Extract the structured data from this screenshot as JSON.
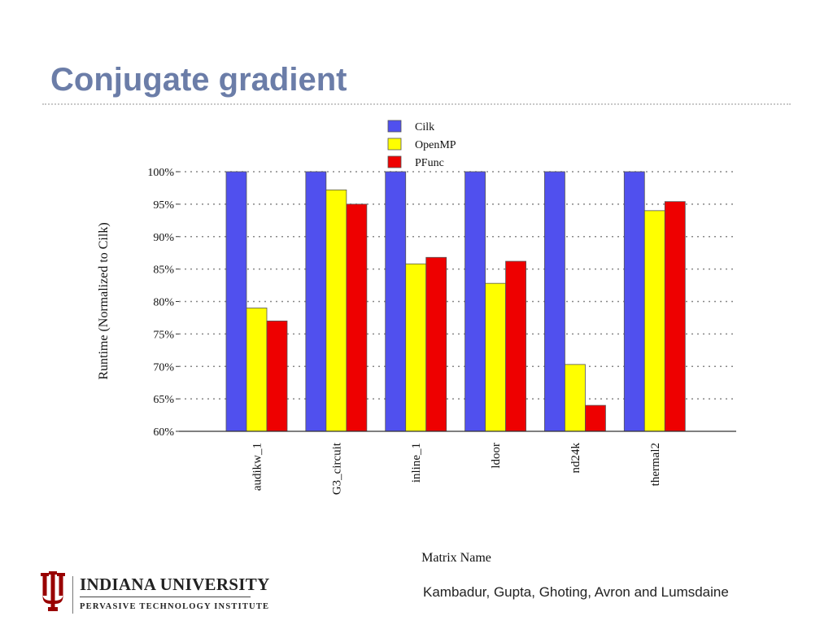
{
  "slide": {
    "title": "Conjugate gradient",
    "credit": "Kambadur, Gupta, Ghoting, Avron and Lumsdaine"
  },
  "logo": {
    "name": "INDIANA UNIVERSITY",
    "subtitle": "PERVASIVE TECHNOLOGY INSTITUTE",
    "color": "#990000"
  },
  "chart_data": {
    "type": "bar",
    "title": "",
    "xlabel": "Matrix Name",
    "ylabel": "Runtime (Normalized to Cilk)",
    "ylim": [
      60,
      100
    ],
    "y_ticks": [
      "60%",
      "65%",
      "70%",
      "75%",
      "80%",
      "85%",
      "90%",
      "95%",
      "100%"
    ],
    "grid": true,
    "legend_position": "top-center",
    "categories": [
      "audikw_1",
      "G3_circuit",
      "inline_1",
      "ldoor",
      "nd24k",
      "thermal2"
    ],
    "series": [
      {
        "name": "Cilk",
        "color": "#5050ee",
        "values": [
          100,
          100,
          100,
          100,
          100,
          100
        ]
      },
      {
        "name": "OpenMP",
        "color": "#ffff00",
        "values": [
          79,
          97.2,
          85.8,
          82.8,
          70.3,
          94
        ]
      },
      {
        "name": "PFunc",
        "color": "#ee0000",
        "values": [
          77,
          95,
          86.8,
          86.2,
          64,
          95.4
        ]
      }
    ]
  }
}
